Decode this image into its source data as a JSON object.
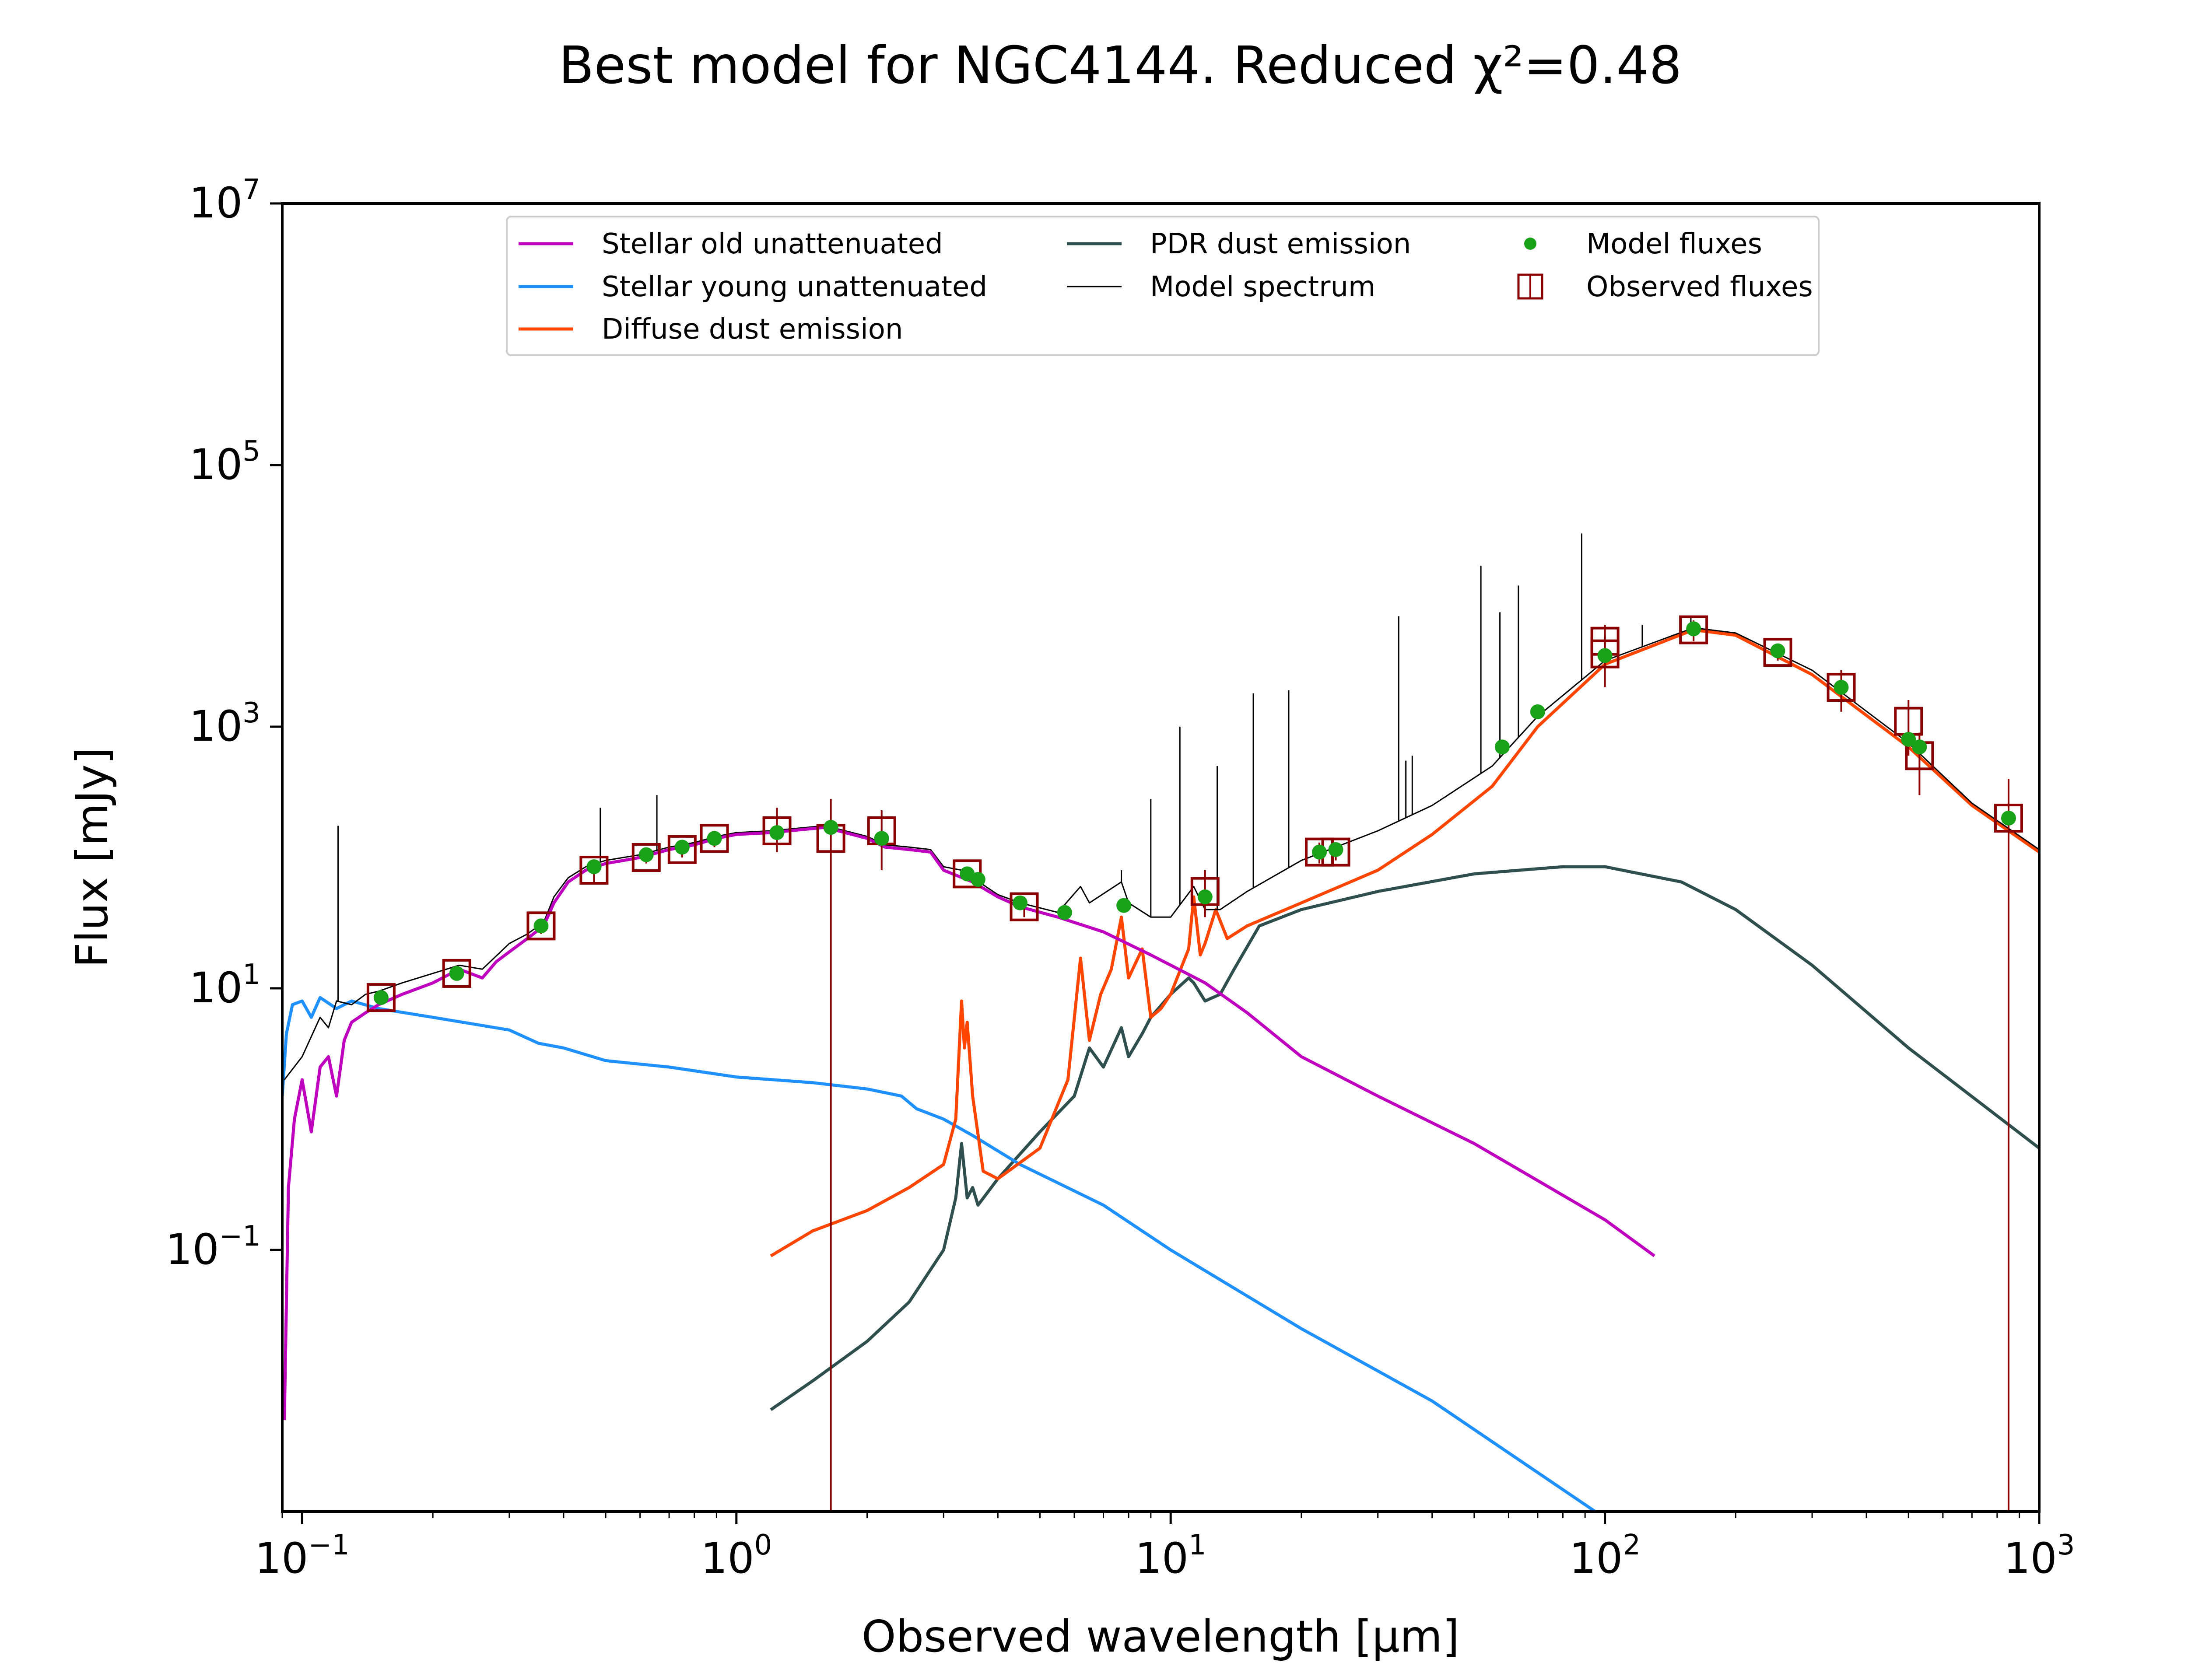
{
  "chart_data": {
    "type": "line",
    "title": "Best model for NGC4144. Reduced χ²=0.48",
    "xlabel": "Observed wavelength [μm]",
    "ylabel": "Flux [mJy]",
    "xscale": "log",
    "yscale": "log",
    "xlim": [
      0.09,
      1000
    ],
    "ylim": [
      0.001,
      10000000
    ],
    "x_ticks": [
      {
        "value": 0.1,
        "base": "10",
        "exp": "−1"
      },
      {
        "value": 1,
        "base": "10",
        "exp": "0"
      },
      {
        "value": 10,
        "base": "10",
        "exp": "1"
      },
      {
        "value": 100,
        "base": "10",
        "exp": "2"
      },
      {
        "value": 1000,
        "base": "10",
        "exp": "3"
      }
    ],
    "y_ticks": [
      {
        "value": 0.1,
        "base": "10",
        "exp": "−1"
      },
      {
        "value": 10,
        "base": "10",
        "exp": "1"
      },
      {
        "value": 1000,
        "base": "10",
        "exp": "3"
      },
      {
        "value": 100000,
        "base": "10",
        "exp": "5"
      },
      {
        "value": 10000000,
        "base": "10",
        "exp": "7"
      }
    ],
    "legend": {
      "placement": "upper center",
      "entries": [
        {
          "label": "Stellar old unattenuated",
          "kind": "line",
          "color": "#bf00bf"
        },
        {
          "label": "Stellar young unattenuated",
          "kind": "line",
          "color": "#1e90ff"
        },
        {
          "label": "Diffuse dust emission",
          "kind": "line",
          "color": "#ff4500"
        },
        {
          "label": "PDR dust emission",
          "kind": "line",
          "color": "#2f4f4f"
        },
        {
          "label": "Model spectrum",
          "kind": "thinline",
          "color": "#000000"
        },
        {
          "label": "Model fluxes",
          "kind": "dot",
          "color": "#1aa11a"
        },
        {
          "label": "Observed fluxes",
          "kind": "square",
          "color": "#8b0000"
        }
      ]
    },
    "series": [
      {
        "name": "Stellar old unattenuated",
        "color": "#bf00bf",
        "width": 7,
        "points": [
          [
            0.091,
            0.005
          ],
          [
            0.093,
            0.3
          ],
          [
            0.096,
            1.0
          ],
          [
            0.1,
            2.0
          ],
          [
            0.105,
            0.8
          ],
          [
            0.11,
            2.5
          ],
          [
            0.115,
            3.0
          ],
          [
            0.12,
            1.5
          ],
          [
            0.125,
            4.0
          ],
          [
            0.13,
            5.5
          ],
          [
            0.14,
            6.5
          ],
          [
            0.15,
            7.5
          ],
          [
            0.17,
            9.0
          ],
          [
            0.2,
            11
          ],
          [
            0.23,
            14
          ],
          [
            0.26,
            12
          ],
          [
            0.28,
            16
          ],
          [
            0.3,
            19
          ],
          [
            0.33,
            24
          ],
          [
            0.36,
            30
          ],
          [
            0.38,
            45
          ],
          [
            0.41,
            65
          ],
          [
            0.45,
            80
          ],
          [
            0.5,
            90
          ],
          [
            0.55,
            95
          ],
          [
            0.6,
            100
          ],
          [
            0.7,
            115
          ],
          [
            0.8,
            125
          ],
          [
            0.9,
            140
          ],
          [
            1.0,
            150
          ],
          [
            1.2,
            155
          ],
          [
            1.6,
            170
          ],
          [
            2.0,
            140
          ],
          [
            2.2,
            120
          ],
          [
            2.5,
            115
          ],
          [
            2.8,
            110
          ],
          [
            3.0,
            80
          ],
          [
            3.5,
            65
          ],
          [
            4.0,
            50
          ],
          [
            4.5,
            42
          ],
          [
            5.5,
            35
          ],
          [
            7.0,
            27
          ],
          [
            9.0,
            18
          ],
          [
            12,
            11
          ],
          [
            15,
            6.5
          ],
          [
            20,
            3.0
          ],
          [
            30,
            1.5
          ],
          [
            50,
            0.65
          ],
          [
            100,
            0.17
          ],
          [
            130,
            0.09
          ]
        ]
      },
      {
        "name": "Stellar young unattenuated",
        "color": "#1e90ff",
        "width": 7,
        "points": [
          [
            0.09,
            1.5
          ],
          [
            0.092,
            4.5
          ],
          [
            0.095,
            7.5
          ],
          [
            0.1,
            8.0
          ],
          [
            0.105,
            6.0
          ],
          [
            0.11,
            8.5
          ],
          [
            0.12,
            7.0
          ],
          [
            0.13,
            8.0
          ],
          [
            0.15,
            7.0
          ],
          [
            0.2,
            6.0
          ],
          [
            0.3,
            4.8
          ],
          [
            0.35,
            3.8
          ],
          [
            0.4,
            3.5
          ],
          [
            0.5,
            2.8
          ],
          [
            0.7,
            2.5
          ],
          [
            1.0,
            2.1
          ],
          [
            1.5,
            1.9
          ],
          [
            2.0,
            1.7
          ],
          [
            2.4,
            1.5
          ],
          [
            2.6,
            1.2
          ],
          [
            3.0,
            1.0
          ],
          [
            3.5,
            0.75
          ],
          [
            4.5,
            0.45
          ],
          [
            7.0,
            0.22
          ],
          [
            10,
            0.1
          ],
          [
            20,
            0.025
          ],
          [
            40,
            0.007
          ],
          [
            95,
            0.001
          ]
        ]
      },
      {
        "name": "Diffuse dust emission",
        "color": "#ff4500",
        "width": 7,
        "points": [
          [
            1.2,
            0.09
          ],
          [
            1.5,
            0.14
          ],
          [
            2.0,
            0.2
          ],
          [
            2.5,
            0.3
          ],
          [
            3.0,
            0.45
          ],
          [
            3.2,
            1.0
          ],
          [
            3.3,
            8.0
          ],
          [
            3.35,
            3.5
          ],
          [
            3.4,
            5.5
          ],
          [
            3.5,
            1.5
          ],
          [
            3.7,
            0.4
          ],
          [
            4.0,
            0.35
          ],
          [
            5.0,
            0.6
          ],
          [
            5.8,
            2.0
          ],
          [
            6.2,
            17
          ],
          [
            6.5,
            4.0
          ],
          [
            6.9,
            9.0
          ],
          [
            7.3,
            14
          ],
          [
            7.7,
            35
          ],
          [
            8.0,
            12
          ],
          [
            8.6,
            20
          ],
          [
            9.0,
            6.0
          ],
          [
            9.5,
            7.0
          ],
          [
            10,
            9.0
          ],
          [
            11,
            20
          ],
          [
            11.3,
            50
          ],
          [
            11.7,
            18
          ],
          [
            12.0,
            22
          ],
          [
            12.7,
            40
          ],
          [
            13.5,
            24
          ],
          [
            15,
            30
          ],
          [
            20,
            45
          ],
          [
            30,
            80
          ],
          [
            40,
            150
          ],
          [
            55,
            350
          ],
          [
            70,
            1000
          ],
          [
            100,
            3000
          ],
          [
            160,
            5500
          ],
          [
            200,
            5000
          ],
          [
            300,
            2500
          ],
          [
            500,
            700
          ],
          [
            700,
            250
          ],
          [
            1000,
            110
          ]
        ]
      },
      {
        "name": "PDR dust emission",
        "color": "#2f4f4f",
        "width": 7,
        "points": [
          [
            1.2,
            0.006
          ],
          [
            1.5,
            0.01
          ],
          [
            2.0,
            0.02
          ],
          [
            2.5,
            0.04
          ],
          [
            3.0,
            0.1
          ],
          [
            3.2,
            0.25
          ],
          [
            3.3,
            0.65
          ],
          [
            3.4,
            0.25
          ],
          [
            3.5,
            0.3
          ],
          [
            3.6,
            0.22
          ],
          [
            4.0,
            0.35
          ],
          [
            5.0,
            0.8
          ],
          [
            6.0,
            1.5
          ],
          [
            6.5,
            3.5
          ],
          [
            7.0,
            2.5
          ],
          [
            7.7,
            5.0
          ],
          [
            8.0,
            3.0
          ],
          [
            8.6,
            4.5
          ],
          [
            9.0,
            6.0
          ],
          [
            10,
            9.0
          ],
          [
            11,
            12
          ],
          [
            11.3,
            11
          ],
          [
            12,
            8.0
          ],
          [
            13,
            9.0
          ],
          [
            14,
            14
          ],
          [
            16,
            30
          ],
          [
            20,
            40
          ],
          [
            30,
            55
          ],
          [
            50,
            75
          ],
          [
            80,
            85
          ],
          [
            100,
            85
          ],
          [
            150,
            65
          ],
          [
            200,
            40
          ],
          [
            300,
            15
          ],
          [
            500,
            3.5
          ],
          [
            1000,
            0.6
          ]
        ]
      },
      {
        "name": "Model spectrum",
        "color": "#000000",
        "width": 3,
        "points": [
          [
            0.091,
            2.0
          ],
          [
            0.1,
            3.0
          ],
          [
            0.11,
            6.0
          ],
          [
            0.115,
            5.0
          ],
          [
            0.12,
            8.0
          ],
          [
            0.13,
            7.5
          ],
          [
            0.14,
            9.0
          ],
          [
            0.15,
            9.5
          ],
          [
            0.17,
            11
          ],
          [
            0.2,
            13
          ],
          [
            0.23,
            15
          ],
          [
            0.26,
            14
          ],
          [
            0.3,
            22
          ],
          [
            0.33,
            26
          ],
          [
            0.36,
            32
          ],
          [
            0.38,
            50
          ],
          [
            0.41,
            70
          ],
          [
            0.45,
            85
          ],
          [
            0.5,
            95
          ],
          [
            0.6,
            105
          ],
          [
            0.7,
            120
          ],
          [
            0.8,
            130
          ],
          [
            0.9,
            145
          ],
          [
            1.0,
            155
          ],
          [
            1.2,
            160
          ],
          [
            1.6,
            175
          ],
          [
            2.0,
            145
          ],
          [
            2.2,
            125
          ],
          [
            2.5,
            120
          ],
          [
            2.8,
            115
          ],
          [
            3.0,
            85
          ],
          [
            3.3,
            80
          ],
          [
            3.5,
            70
          ],
          [
            4.0,
            52
          ],
          [
            4.5,
            45
          ],
          [
            5.5,
            38
          ],
          [
            6.2,
            60
          ],
          [
            6.5,
            45
          ],
          [
            7.7,
            65
          ],
          [
            8.0,
            45
          ],
          [
            9.0,
            35
          ],
          [
            10,
            35
          ],
          [
            11.3,
            60
          ],
          [
            12,
            40
          ],
          [
            13,
            40
          ],
          [
            15,
            55
          ],
          [
            20,
            95
          ],
          [
            30,
            160
          ],
          [
            40,
            250
          ],
          [
            55,
            500
          ],
          [
            70,
            1200
          ],
          [
            100,
            3200
          ],
          [
            160,
            5700
          ],
          [
            200,
            5200
          ],
          [
            300,
            2700
          ],
          [
            500,
            750
          ],
          [
            700,
            260
          ],
          [
            1000,
            115
          ]
        ]
      }
    ],
    "lines": [
      {
        "x": 0.121,
        "y": 175
      },
      {
        "x": 0.486,
        "y": 240
      },
      {
        "x": 0.656,
        "y": 300
      },
      {
        "x": 7.7,
        "y": 80
      },
      {
        "x": 9.0,
        "y": 280
      },
      {
        "x": 10.5,
        "y": 1000
      },
      {
        "x": 12.8,
        "y": 500
      },
      {
        "x": 15.5,
        "y": 1800
      },
      {
        "x": 18.7,
        "y": 1900
      },
      {
        "x": 33.5,
        "y": 7000
      },
      {
        "x": 34.8,
        "y": 550
      },
      {
        "x": 36.0,
        "y": 600
      },
      {
        "x": 51.8,
        "y": 17000
      },
      {
        "x": 57.3,
        "y": 7500
      },
      {
        "x": 63.2,
        "y": 12000
      },
      {
        "x": 88.4,
        "y": 30000
      },
      {
        "x": 121.9,
        "y": 6000
      },
      {
        "x": 157.7,
        "y": 7000
      }
    ],
    "model_fluxes": [
      {
        "x": 0.152,
        "y": 8.5
      },
      {
        "x": 0.227,
        "y": 13
      },
      {
        "x": 0.355,
        "y": 30
      },
      {
        "x": 0.47,
        "y": 85
      },
      {
        "x": 0.62,
        "y": 105
      },
      {
        "x": 0.75,
        "y": 120
      },
      {
        "x": 0.89,
        "y": 140
      },
      {
        "x": 1.24,
        "y": 155
      },
      {
        "x": 1.65,
        "y": 170
      },
      {
        "x": 2.16,
        "y": 140
      },
      {
        "x": 3.4,
        "y": 75
      },
      {
        "x": 3.6,
        "y": 68
      },
      {
        "x": 4.5,
        "y": 45
      },
      {
        "x": 5.7,
        "y": 38
      },
      {
        "x": 7.8,
        "y": 43
      },
      {
        "x": 12.0,
        "y": 50
      },
      {
        "x": 22.0,
        "y": 110
      },
      {
        "x": 24.0,
        "y": 115
      },
      {
        "x": 58.0,
        "y": 700
      },
      {
        "x": 70.0,
        "y": 1300
      },
      {
        "x": 100.0,
        "y": 3500
      },
      {
        "x": 160.0,
        "y": 5600
      },
      {
        "x": 250.0,
        "y": 3800
      },
      {
        "x": 350.0,
        "y": 2000
      },
      {
        "x": 500.0,
        "y": 800
      },
      {
        "x": 530.0,
        "y": 700
      },
      {
        "x": 850.0,
        "y": 200
      }
    ],
    "observed_fluxes": [
      {
        "x": 0.152,
        "y": 8.5,
        "lo": 7.5,
        "hi": 9.5
      },
      {
        "x": 0.227,
        "y": 13,
        "lo": 11.5,
        "hi": 14.5
      },
      {
        "x": 0.355,
        "y": 30,
        "lo": 26,
        "hi": 34
      },
      {
        "x": 0.47,
        "y": 80,
        "lo": 65,
        "hi": 95
      },
      {
        "x": 0.62,
        "y": 100,
        "lo": 90,
        "hi": 115
      },
      {
        "x": 0.75,
        "y": 115,
        "lo": 100,
        "hi": 130
      },
      {
        "x": 0.89,
        "y": 140,
        "lo": 120,
        "hi": 160
      },
      {
        "x": 1.24,
        "y": 160,
        "lo": 110,
        "hi": 240
      },
      {
        "x": 1.65,
        "y": 140,
        "lo": 0.001,
        "hi": 280
      },
      {
        "x": 2.16,
        "y": 160,
        "lo": 80,
        "hi": 230
      },
      {
        "x": 3.4,
        "y": 75,
        "lo": 68,
        "hi": 84
      },
      {
        "x": 4.6,
        "y": 42,
        "lo": 35,
        "hi": 50
      },
      {
        "x": 12.0,
        "y": 55,
        "lo": 35,
        "hi": 80
      },
      {
        "x": 22.0,
        "y": 110,
        "lo": 90,
        "hi": 130
      },
      {
        "x": 24.0,
        "y": 110,
        "lo": 95,
        "hi": 125
      },
      {
        "x": 100.0,
        "y": 3600,
        "lo": 2000,
        "hi": 5000
      },
      {
        "x": 100.0,
        "y": 4500,
        "lo": 3000,
        "hi": 6000
      },
      {
        "x": 160.0,
        "y": 5500,
        "lo": 4500,
        "hi": 6500
      },
      {
        "x": 250.0,
        "y": 3700,
        "lo": 3200,
        "hi": 4200
      },
      {
        "x": 350.0,
        "y": 2000,
        "lo": 1300,
        "hi": 2700
      },
      {
        "x": 500.0,
        "y": 1100,
        "lo": 600,
        "hi": 1600
      },
      {
        "x": 530.0,
        "y": 600,
        "lo": 300,
        "hi": 900
      },
      {
        "x": 850.0,
        "y": 200,
        "lo": 0.001,
        "hi": 400
      }
    ]
  }
}
